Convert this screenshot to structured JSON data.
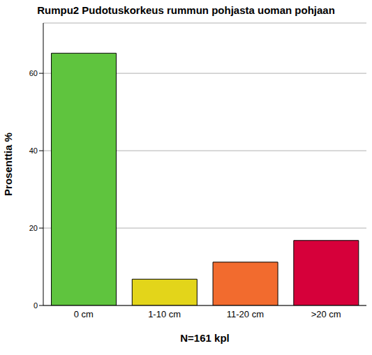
{
  "chart_data": {
    "type": "bar",
    "title": "Rumpu2 Pudotuskorkeus rummun pohjasta uoman pohjaan",
    "x_label": "N=161 kpl",
    "y_label": "Prosenttia %",
    "categories": [
      "0 cm",
      "1-10 cm",
      "11-20 cm",
      ">20 cm"
    ],
    "values": [
      65.2,
      6.8,
      11.2,
      16.8
    ],
    "colors": [
      "#5fc43e",
      "#e3d51a",
      "#f26b2e",
      "#d6003a"
    ],
    "ylim": [
      0,
      73
    ],
    "yticks": [
      0,
      20,
      40,
      60
    ],
    "grid": true
  }
}
